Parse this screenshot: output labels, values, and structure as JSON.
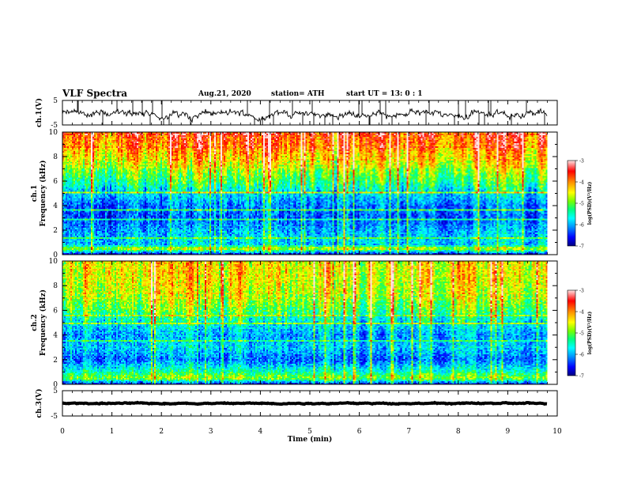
{
  "header": {
    "title": "VLF Spectra",
    "date": "Aug.21, 2020",
    "station": "station= ATH",
    "start": "start UT =  13: 0  : 1"
  },
  "colors": {
    "spectral": [
      "#000080",
      "#0000ff",
      "#00b0ff",
      "#00ffff",
      "#00ff80",
      "#80ff00",
      "#ffff00",
      "#ff8000",
      "#ff0000",
      "#ffffff"
    ],
    "trace": "#000000",
    "axis": "#000000"
  },
  "chart_data": [
    {
      "type": "line",
      "name": "ch1-waveform",
      "ylabel": "ch.1(V)",
      "ylim": [
        -5,
        5
      ],
      "yticks": [
        5,
        -5
      ],
      "xlim": [
        0,
        10
      ],
      "trace": {
        "mean": -0.5,
        "amplitude": 1.6,
        "end_min": 9.8
      }
    },
    {
      "type": "heatmap",
      "name": "ch1-spectrogram",
      "ylabel_line1": "ch.1",
      "ylabel_line2": "Frequency (kHz)",
      "ylim": [
        0,
        10
      ],
      "yticks": [
        0,
        2,
        4,
        6,
        8,
        10
      ],
      "xlim": [
        0,
        10
      ],
      "data_end_min": 9.8,
      "colorbar": {
        "label": "log(PSD)(V²/Hz)",
        "range": [
          -7,
          -3
        ],
        "ticks": [
          -3,
          -4,
          -5,
          -6,
          -7
        ]
      },
      "profile_khz_to_logpsd": [
        [
          0.0,
          -6.8
        ],
        [
          0.5,
          -4.6
        ],
        [
          0.8,
          -5.9
        ],
        [
          1.2,
          -5.8
        ],
        [
          2.0,
          -6.0
        ],
        [
          3.0,
          -6.3
        ],
        [
          4.0,
          -6.2
        ],
        [
          5.0,
          -5.8
        ],
        [
          6.0,
          -5.2
        ],
        [
          7.0,
          -4.8
        ],
        [
          8.0,
          -4.3
        ],
        [
          9.0,
          -3.9
        ],
        [
          10.0,
          -3.7
        ]
      ]
    },
    {
      "type": "heatmap",
      "name": "ch2-spectrogram",
      "ylabel_line1": "ch.2",
      "ylabel_line2": "Frequency (kHz)",
      "ylim": [
        0,
        10
      ],
      "yticks": [
        0,
        2,
        4,
        6,
        8,
        10
      ],
      "xlim": [
        0,
        10
      ],
      "data_end_min": 9.8,
      "colorbar": {
        "label": "log(PSD)(V²/Hz)",
        "range": [
          -7,
          -3
        ],
        "ticks": [
          -3,
          -4,
          -5,
          -6,
          -7
        ]
      },
      "profile_khz_to_logpsd": [
        [
          0.0,
          -6.6
        ],
        [
          0.5,
          -4.8
        ],
        [
          1.0,
          -5.4
        ],
        [
          2.0,
          -6.2
        ],
        [
          3.0,
          -5.8
        ],
        [
          4.0,
          -6.0
        ],
        [
          5.0,
          -5.6
        ],
        [
          6.0,
          -5.0
        ],
        [
          7.0,
          -4.7
        ],
        [
          8.0,
          -4.5
        ],
        [
          9.0,
          -4.4
        ],
        [
          10.0,
          -4.4
        ]
      ]
    },
    {
      "type": "line",
      "name": "ch3-waveform",
      "ylabel": "ch.3(V)",
      "ylim": [
        -5,
        5
      ],
      "yticks": [
        5,
        -5
      ],
      "xlim": [
        0,
        10
      ],
      "trace": {
        "mean": 0.0,
        "amplitude": 0.2,
        "end_min": 9.8
      }
    }
  ],
  "xaxis": {
    "label": "Time (min)",
    "ticks": [
      0,
      1,
      2,
      3,
      4,
      5,
      6,
      7,
      8,
      9,
      10
    ]
  }
}
